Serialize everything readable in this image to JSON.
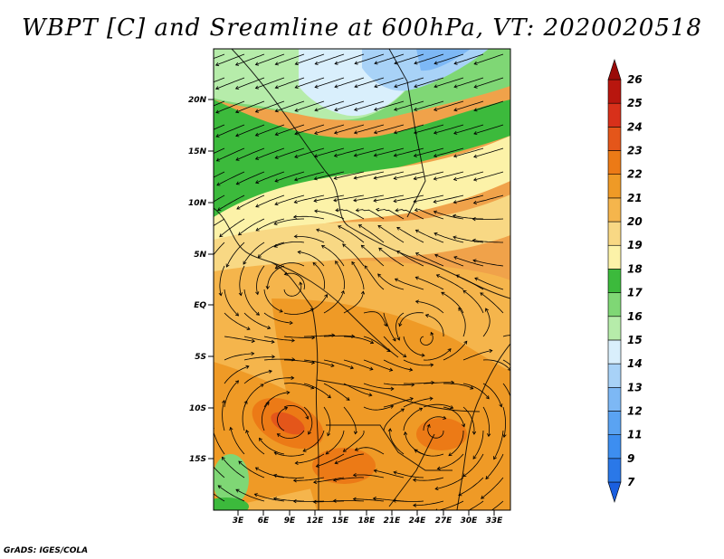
{
  "title": "WBPT [C] and Sreamline at 600hPa, VT: 2020020518",
  "footer": "GrADS: IGES/COLA",
  "map": {
    "lat_ticks": [
      "20N",
      "15N",
      "10N",
      "5N",
      "EQ",
      "5S",
      "10S",
      "15S"
    ],
    "lon_ticks": [
      "3E",
      "6E",
      "9E",
      "12E",
      "15E",
      "18E",
      "21E",
      "24E",
      "27E",
      "30E",
      "33E"
    ]
  },
  "colorbar": {
    "levels": [
      "7",
      "9",
      "11",
      "12",
      "13",
      "14",
      "15",
      "16",
      "17",
      "18",
      "19",
      "20",
      "21",
      "22",
      "23",
      "24",
      "25",
      "26"
    ],
    "colors": [
      "#1a5fe0",
      "#2a78e8",
      "#3d8ef0",
      "#5aa3f2",
      "#7db8f5",
      "#a8d2f7",
      "#d9effc",
      "#b6ecaa",
      "#7fd775",
      "#3cba3c",
      "#fcf2a8",
      "#f8d884",
      "#f5b54c",
      "#ef9a26",
      "#ec7a16",
      "#e4561a",
      "#d8301a",
      "#b8160e",
      "#9a0a08"
    ]
  }
}
